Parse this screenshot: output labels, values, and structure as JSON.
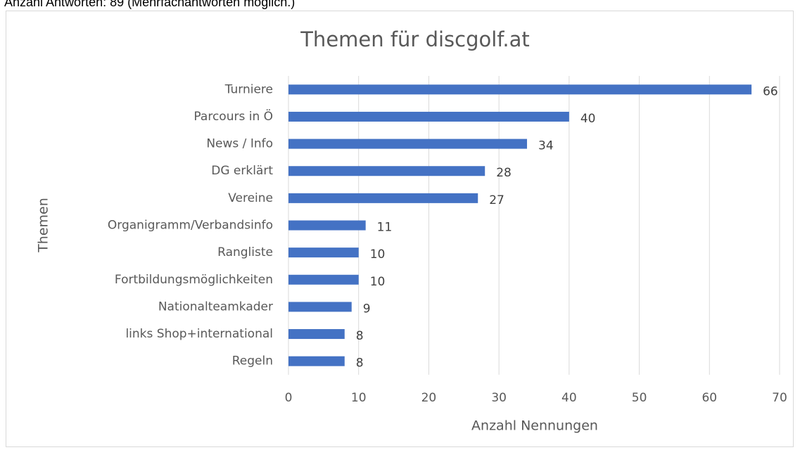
{
  "note": "Anzahl Antworten: 89 (Mehrfachantworten möglich.)",
  "chart_data": {
    "type": "bar",
    "orientation": "horizontal",
    "title": "Themen für discgolf.at",
    "x_label": "Anzahl Nennungen",
    "y_label": "Themen",
    "categories": [
      "Turniere",
      "Parcours in Ö",
      "News / Info",
      "DG erklärt",
      "Vereine",
      "Organigramm/Verbandsinfo",
      "Rangliste",
      "Fortbildungsmöglichkeiten",
      "Nationalteamkader",
      "links Shop+international",
      "Regeln"
    ],
    "values": [
      66,
      40,
      34,
      28,
      27,
      11,
      10,
      10,
      9,
      8,
      8
    ],
    "color": "#4472c4",
    "xlim": [
      0,
      70
    ],
    "xticks": [
      0,
      10,
      20,
      30,
      40,
      50,
      60,
      70
    ],
    "grid": true
  }
}
